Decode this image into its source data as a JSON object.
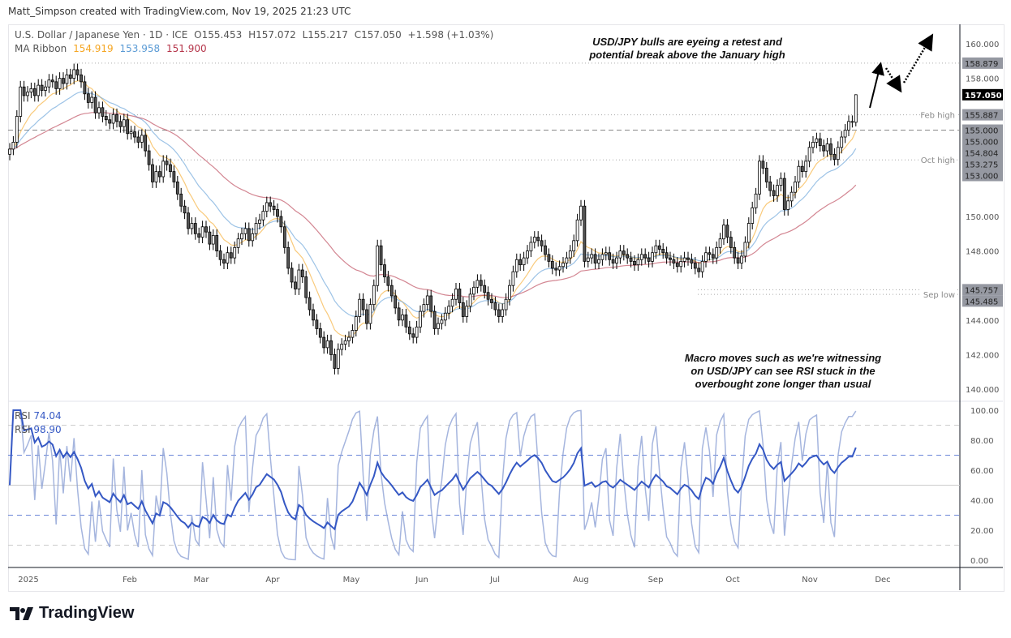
{
  "credit": "Matt_Simpson created with TradingView.com, Nov 19, 2025 21:23 UTC",
  "legend": {
    "symbol": "U.S. Dollar / Japanese Yen · 1D · ICE",
    "open": "O155.453",
    "high": "H157.072",
    "low": "L155.217",
    "close": "C157.050",
    "change": "+1.598 (+1.03%)",
    "ma_label": "MA Ribbon",
    "ma_values": [
      "154.919",
      "153.958",
      "151.900"
    ]
  },
  "rsi_legend": [
    {
      "label": "RSI",
      "value": "74.04"
    },
    {
      "label": "RSI",
      "value": "98.90"
    }
  ],
  "annotations": {
    "top": "USD/JPY bulls are eyeing a retest and potential break above the January high",
    "bottom": "Macro moves such as we're witnessing on USD/JPY can see RSI stuck in the overbought zone longer than usual"
  },
  "logo": "TradingView",
  "colors": {
    "ma_fast": "#f5a623",
    "ma_mid": "#5b9bd5",
    "ma_slow": "#b5354a",
    "rsi_main": "#3558c4",
    "rsi_fast": "#8fa3d6",
    "up": "#ffffff",
    "down": "#555555"
  },
  "chart_data": {
    "type": "candlestick",
    "symbol": "USD/JPY",
    "timeframe": "1D",
    "last_bar": {
      "open": 155.453,
      "high": 157.072,
      "low": 155.217,
      "close": 157.05
    },
    "closes": [
      153.9,
      154.3,
      155.8,
      157.5,
      157.0,
      157.2,
      157.4,
      157.0,
      157.6,
      157.3,
      157.5,
      157.9,
      157.8,
      157.4,
      158.0,
      157.7,
      158.2,
      158.0,
      158.5,
      158.2,
      157.8,
      157.1,
      156.6,
      156.9,
      156.0,
      156.3,
      155.8,
      155.6,
      155.4,
      155.9,
      155.5,
      155.2,
      155.6,
      154.8,
      154.9,
      154.6,
      154.3,
      154.7,
      153.8,
      153.0,
      152.0,
      152.6,
      152.3,
      153.2,
      153.0,
      152.6,
      152.0,
      151.3,
      150.6,
      150.2,
      149.3,
      149.6,
      149.0,
      148.8,
      149.4,
      149.1,
      148.4,
      148.9,
      148.0,
      147.5,
      147.3,
      147.9,
      147.6,
      148.2,
      148.7,
      149.0,
      149.3,
      148.6,
      149.0,
      149.6,
      149.8,
      150.3,
      150.8,
      150.6,
      150.4,
      150.0,
      149.4,
      148.2,
      147.0,
      146.2,
      145.8,
      146.9,
      146.5,
      145.3,
      144.6,
      144.0,
      143.5,
      143.0,
      142.4,
      142.8,
      142.0,
      141.2,
      142.3,
      142.6,
      142.8,
      143.0,
      143.4,
      144.2,
      145.2,
      144.6,
      143.8,
      144.9,
      146.0,
      148.3,
      147.2,
      146.5,
      146.0,
      145.4,
      144.7,
      144.0,
      144.3,
      143.6,
      143.2,
      143.0,
      143.6,
      144.5,
      144.9,
      145.4,
      144.5,
      143.5,
      143.8,
      144.0,
      144.4,
      144.8,
      145.2,
      145.8,
      145.0,
      144.2,
      144.8,
      145.5,
      145.9,
      146.3,
      146.0,
      145.6,
      145.2,
      145.0,
      144.6,
      144.2,
      144.6,
      145.2,
      146.0,
      146.8,
      147.5,
      147.2,
      147.6,
      148.0,
      148.5,
      148.8,
      148.6,
      148.3,
      147.8,
      147.4,
      147.0,
      146.9,
      147.1,
      147.3,
      147.6,
      148.0,
      148.6,
      149.8,
      150.6,
      147.4,
      147.6,
      147.8,
      147.3,
      147.5,
      147.8,
      147.9,
      147.5,
      147.3,
      147.6,
      148.0,
      147.8,
      147.6,
      147.4,
      147.2,
      147.5,
      147.8,
      147.6,
      147.4,
      147.9,
      148.3,
      148.1,
      147.9,
      147.6,
      147.5,
      147.3,
      147.1,
      147.4,
      147.6,
      147.5,
      147.3,
      147.0,
      146.8,
      147.4,
      147.9,
      147.8,
      147.6,
      148.2,
      148.7,
      149.5,
      148.8,
      148.2,
      147.6,
      147.3,
      147.7,
      148.5,
      149.6,
      150.5,
      151.3,
      153.2,
      152.8,
      152.0,
      151.5,
      151.2,
      151.8,
      152.2,
      150.4,
      150.9,
      151.4,
      152.0,
      152.9,
      152.6,
      153.2,
      154.0,
      154.3,
      154.5,
      154.1,
      153.8,
      154.2,
      153.6,
      153.3,
      154.0,
      154.6,
      155.0,
      155.5,
      155.5,
      157.05
    ],
    "x_ticks": [
      "2025",
      "Feb",
      "Mar",
      "Apr",
      "May",
      "Jun",
      "Jul",
      "Aug",
      "Sep",
      "Oct",
      "Nov",
      "Dec"
    ],
    "y_ticks": [
      "140.000",
      "142.000",
      "144.000",
      "146.000",
      "148.000",
      "150.000",
      "152.000",
      "154.000",
      "156.000",
      "158.000",
      "160.000"
    ],
    "ylim": [
      139.5,
      161
    ],
    "levels": [
      {
        "value": "158.879",
        "label": ""
      },
      {
        "value": "155.887",
        "label": "Feb high"
      },
      {
        "value": "155.000",
        "label": "",
        "style": "dashed"
      },
      {
        "value": "153.275",
        "label": "Oct high"
      },
      {
        "value": "145.757",
        "label": ""
      },
      {
        "value": "145.485",
        "label": "Sep low"
      }
    ],
    "price_tags": [
      {
        "value": "158.879",
        "bg": "#9598a1"
      },
      {
        "value": "157.050",
        "bg": "#000000"
      },
      {
        "value": "155.887",
        "bg": "#9598a1"
      },
      {
        "value": "155.000",
        "bg": "#9598a1"
      },
      {
        "value": "155.000",
        "bg": "#9598a1"
      },
      {
        "value": "154.804",
        "bg": "#9598a1"
      },
      {
        "value": "153.275",
        "bg": "#9598a1"
      },
      {
        "value": "153.000",
        "bg": "#9598a1"
      },
      {
        "value": "145.757",
        "bg": "#9598a1"
      },
      {
        "value": "145.485",
        "bg": "#9598a1"
      }
    ],
    "rsi": {
      "ylim": [
        0,
        100
      ],
      "ticks": [
        "0.00",
        "20.00",
        "40.00",
        "60.00",
        "80.00",
        "100.00"
      ],
      "bands": [
        10,
        30,
        50,
        70,
        90
      ]
    }
  }
}
